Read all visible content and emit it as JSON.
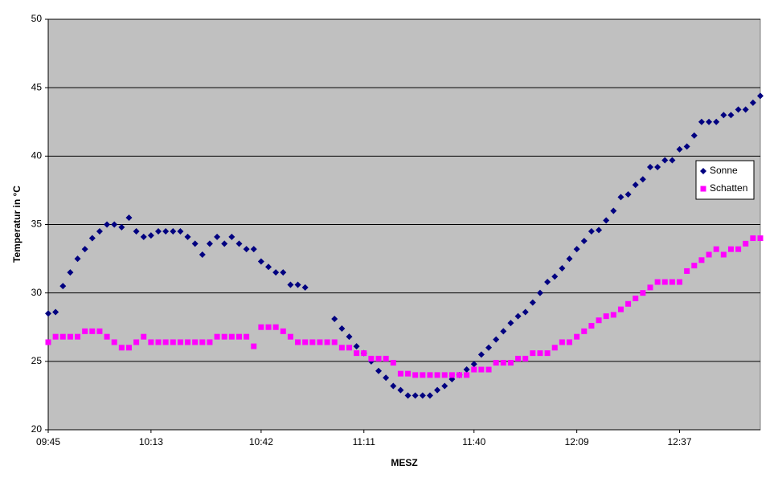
{
  "chart_data": {
    "type": "line",
    "xlabel": "MESZ",
    "ylabel": "Temperatur in °C",
    "categories": [
      "09:45",
      null,
      null,
      null,
      null,
      null,
      null,
      null,
      null,
      null,
      null,
      null,
      null,
      null,
      "10:13",
      null,
      null,
      null,
      null,
      null,
      null,
      null,
      null,
      null,
      null,
      null,
      null,
      null,
      null,
      "10:42",
      null,
      null,
      null,
      null,
      null,
      null,
      null,
      null,
      null,
      null,
      null,
      null,
      null,
      "11:11",
      null,
      null,
      null,
      null,
      null,
      null,
      null,
      null,
      null,
      null,
      null,
      null,
      null,
      null,
      "11:40",
      null,
      null,
      null,
      null,
      null,
      null,
      null,
      null,
      null,
      null,
      null,
      null,
      null,
      "12:09",
      null,
      null,
      null,
      null,
      null,
      null,
      null,
      null,
      null,
      null,
      null,
      null,
      null,
      "12:37",
      null,
      null,
      null,
      null,
      null,
      null,
      null,
      null,
      null,
      null,
      null
    ],
    "series": [
      {
        "name": "Sonne",
        "color": "#000080",
        "marker": "diamond",
        "values": [
          28.5,
          28.6,
          30.5,
          31.5,
          32.5,
          33.2,
          34,
          34.5,
          35,
          35,
          34.8,
          35.5,
          34.5,
          34.1,
          34.2,
          34.5,
          34.5,
          34.5,
          34.5,
          34.1,
          33.6,
          32.8,
          33.6,
          34.1,
          33.6,
          34.1,
          33.6,
          33.2,
          33.2,
          32.3,
          31.9,
          31.5,
          31.5,
          30.6,
          30.6,
          30.4,
          null,
          null,
          null,
          28.1,
          27.4,
          26.8,
          26.1,
          25.6,
          25,
          24.3,
          23.8,
          23.2,
          22.9,
          22.5,
          22.5,
          22.5,
          22.5,
          22.9,
          23.2,
          23.7,
          24,
          24.4,
          24.8,
          25.5,
          26,
          26.6,
          27.2,
          27.8,
          28.3,
          28.6,
          29.3,
          30,
          30.8,
          31.2,
          31.8,
          32.5,
          33.2,
          33.8,
          34.5,
          34.6,
          35.3,
          36,
          37,
          37.2,
          37.9,
          38.3,
          39.2,
          39.2,
          39.7,
          39.7,
          40.5,
          40.7,
          41.5,
          42.5,
          42.5,
          42.5,
          43,
          43,
          43.4,
          43.4,
          43.9,
          44.4
        ]
      },
      {
        "name": "Schatten",
        "color": "#ff00ff",
        "marker": "square",
        "values": [
          26.4,
          26.8,
          26.8,
          26.8,
          26.8,
          27.2,
          27.2,
          27.2,
          26.8,
          26.4,
          26,
          26,
          26.4,
          26.8,
          26.4,
          26.4,
          26.4,
          26.4,
          26.4,
          26.4,
          26.4,
          26.4,
          26.4,
          26.8,
          26.8,
          26.8,
          26.8,
          26.8,
          26.1,
          27.5,
          27.5,
          27.5,
          27.2,
          26.8,
          26.4,
          26.4,
          26.4,
          26.4,
          26.4,
          26.4,
          26,
          26,
          25.6,
          25.6,
          25.2,
          25.2,
          25.2,
          24.9,
          24.1,
          24.1,
          24,
          24,
          24,
          24,
          24,
          24,
          24,
          24,
          24.4,
          24.4,
          24.4,
          24.9,
          24.9,
          24.9,
          25.2,
          25.2,
          25.6,
          25.6,
          25.6,
          26,
          26.4,
          26.4,
          26.8,
          27.2,
          27.6,
          28,
          28.3,
          28.4,
          28.8,
          29.2,
          29.6,
          30,
          30.4,
          30.8,
          30.8,
          30.8,
          30.8,
          31.6,
          32,
          32.4,
          32.8,
          33.2,
          32.8,
          33.2,
          33.2,
          33.6,
          34,
          34
        ]
      }
    ],
    "ylim": [
      20,
      50
    ],
    "yticks": [
      20,
      25,
      30,
      35,
      40,
      45,
      50
    ],
    "grid": true,
    "legend": "right",
    "plot_background": "#c0c0c0"
  }
}
